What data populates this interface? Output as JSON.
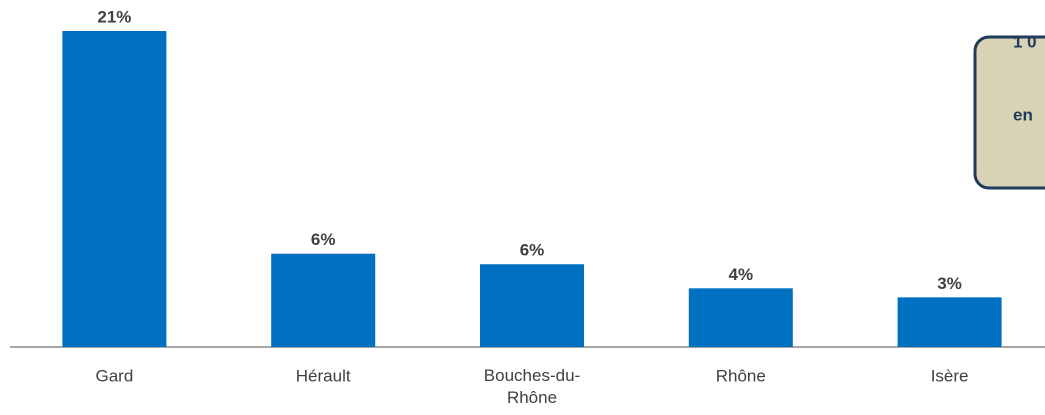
{
  "chart_data": {
    "type": "bar",
    "categories": [
      "Gard",
      "Hérault",
      "Bouches-du-Rhône",
      "Rhône",
      "Isère"
    ],
    "values": [
      21,
      6.2,
      5.5,
      3.9,
      3.3
    ],
    "value_labels": [
      "21%",
      "6%",
      "6%",
      "4%",
      "3%"
    ],
    "color": "#0070c0",
    "ylim": [
      0,
      21
    ],
    "annotation": [
      "1 0",
      "en"
    ]
  }
}
